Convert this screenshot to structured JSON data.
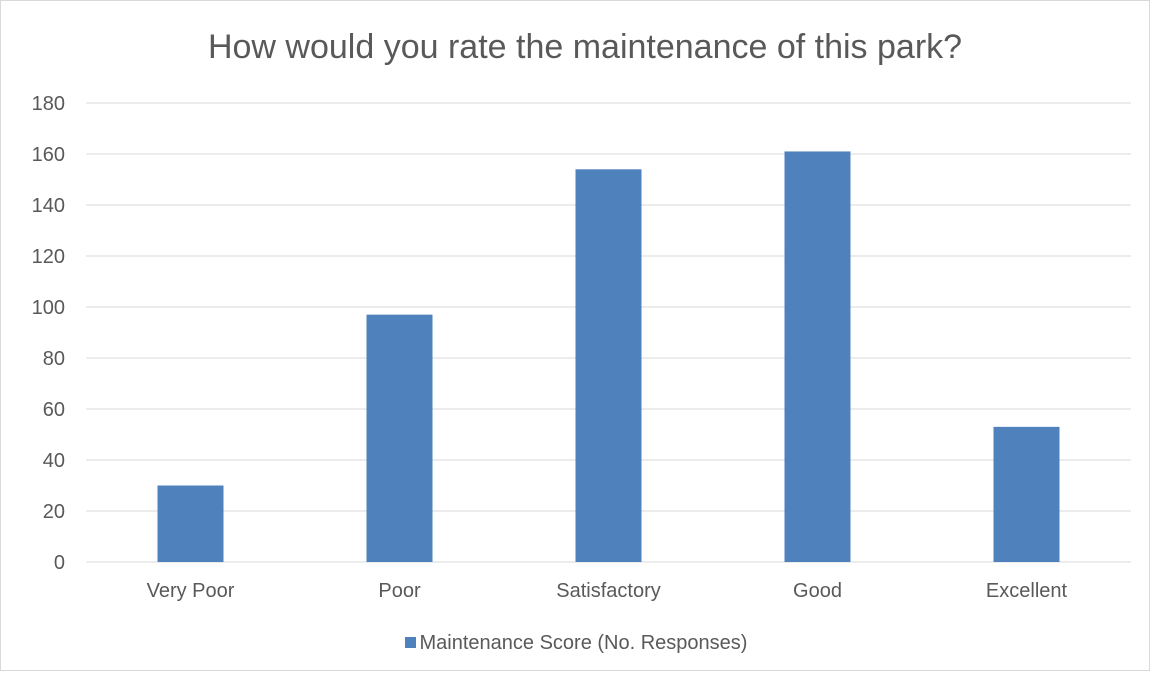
{
  "chart_data": {
    "type": "bar",
    "title": "How would you rate the maintenance of this park?",
    "categories": [
      "Very Poor",
      "Poor",
      "Satisfactory",
      "Good",
      "Excellent"
    ],
    "series": [
      {
        "name": "Maintenance Score (No. Responses)",
        "values": [
          30,
          97,
          154,
          161,
          53
        ],
        "color": "#4f81bd"
      }
    ],
    "ylim": [
      0,
      180
    ],
    "yticks": [
      "0",
      "20",
      "40",
      "60",
      "80",
      "100",
      "120",
      "140",
      "160",
      "180"
    ],
    "grid": true,
    "legend_position": "bottom",
    "gridline_color": "#d9d9d9",
    "text_color": "#595959"
  }
}
